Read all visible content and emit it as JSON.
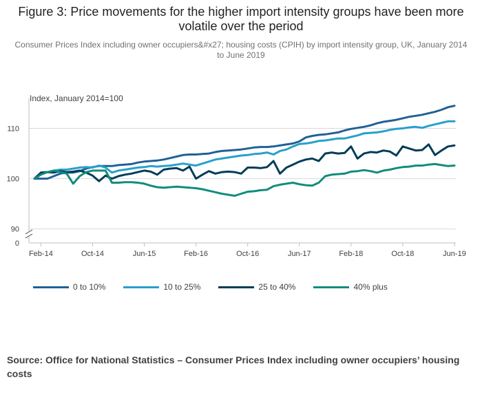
{
  "title": "Figure 3: Price movements for the higher import intensity groups have been more volatile over the period",
  "subtitle": "Consumer Prices Index including owner occupiers&#x27; housing costs (CPIH) by import intensity group, UK, January 2014 to June 2019",
  "source": "Source: Office for National Statistics – Consumer Prices Index including owner occupiers’ housing costs",
  "chart_data": {
    "type": "line",
    "ylabel": "Index, January 2014=100",
    "yticks": [
      90,
      100,
      110
    ],
    "ybreak_tick": 0,
    "ylim": [
      89,
      115
    ],
    "x_count": 66,
    "xtick_labels": [
      "Feb-14",
      "Oct-14",
      "Jun-15",
      "Feb-16",
      "Oct-16",
      "Jun-17",
      "Feb-18",
      "Oct-18",
      "Jun-19"
    ],
    "xtick_indices": [
      1,
      9,
      17,
      25,
      33,
      41,
      49,
      57,
      65
    ],
    "series": [
      {
        "name": "0 to 10%",
        "color": "#206095",
        "values": [
          100.0,
          100.0,
          100.0,
          100.5,
          101.0,
          101.2,
          101.2,
          101.5,
          102.0,
          102.3,
          102.5,
          102.5,
          102.5,
          102.7,
          102.8,
          102.9,
          103.2,
          103.4,
          103.5,
          103.6,
          103.8,
          104.1,
          104.4,
          104.7,
          104.8,
          104.8,
          104.9,
          105.0,
          105.3,
          105.5,
          105.6,
          105.7,
          105.8,
          106.0,
          106.2,
          106.3,
          106.3,
          106.4,
          106.6,
          106.8,
          107.0,
          107.4,
          108.2,
          108.5,
          108.7,
          108.8,
          109.0,
          109.2,
          109.6,
          109.9,
          110.1,
          110.3,
          110.6,
          111.0,
          111.3,
          111.5,
          111.7,
          112.0,
          112.3,
          112.5,
          112.7,
          113.0,
          113.3,
          113.7,
          114.2,
          114.5
        ]
      },
      {
        "name": "10 to 25%",
        "color": "#27a0cc",
        "values": [
          100.0,
          101.0,
          101.3,
          101.6,
          101.8,
          101.8,
          102.0,
          102.2,
          102.3,
          102.2,
          102.6,
          102.2,
          101.2,
          101.6,
          101.8,
          102.0,
          102.2,
          102.3,
          102.5,
          102.4,
          102.5,
          102.6,
          102.8,
          103.0,
          102.8,
          102.6,
          103.0,
          103.4,
          103.8,
          104.0,
          104.2,
          104.4,
          104.6,
          104.7,
          104.9,
          105.0,
          105.2,
          104.8,
          105.5,
          105.8,
          106.4,
          106.9,
          107.0,
          107.2,
          107.5,
          107.6,
          107.8,
          108.0,
          108.0,
          108.3,
          108.6,
          109.0,
          109.1,
          109.2,
          109.4,
          109.7,
          109.9,
          110.0,
          110.2,
          110.3,
          110.1,
          110.5,
          110.8,
          111.1,
          111.4,
          111.4
        ]
      },
      {
        "name": "25 to 40%",
        "color": "#003c57",
        "values": [
          100.0,
          101.2,
          101.3,
          101.2,
          101.5,
          101.3,
          101.4,
          101.6,
          101.2,
          100.6,
          99.5,
          100.6,
          100.0,
          100.5,
          100.8,
          101.0,
          101.3,
          101.6,
          101.4,
          100.8,
          101.8,
          102.0,
          102.1,
          101.6,
          102.4,
          100.0,
          100.8,
          101.5,
          101.0,
          101.3,
          101.4,
          101.3,
          101.0,
          102.2,
          102.2,
          102.1,
          102.3,
          103.5,
          101.0,
          102.2,
          102.8,
          103.4,
          103.8,
          104.0,
          103.5,
          105.0,
          105.2,
          105.0,
          105.1,
          106.4,
          104.0,
          105.0,
          105.3,
          105.2,
          105.6,
          105.4,
          104.6,
          106.4,
          106.0,
          105.6,
          105.7,
          106.8,
          104.7,
          105.6,
          106.4,
          106.6
        ]
      },
      {
        "name": "40% plus",
        "color": "#118c7b",
        "values": [
          100.0,
          100.8,
          101.3,
          101.6,
          101.3,
          101.0,
          99.0,
          100.5,
          101.3,
          101.6,
          101.6,
          101.6,
          99.2,
          99.2,
          99.3,
          99.3,
          99.2,
          99.0,
          98.6,
          98.3,
          98.2,
          98.3,
          98.4,
          98.3,
          98.2,
          98.1,
          97.9,
          97.6,
          97.3,
          97.0,
          96.8,
          96.6,
          97.0,
          97.4,
          97.5,
          97.7,
          97.8,
          98.5,
          98.8,
          99.0,
          99.2,
          98.9,
          98.7,
          98.6,
          99.2,
          100.5,
          100.8,
          100.9,
          101.0,
          101.4,
          101.5,
          101.7,
          101.5,
          101.2,
          101.6,
          101.8,
          102.1,
          102.3,
          102.4,
          102.6,
          102.6,
          102.8,
          102.9,
          102.7,
          102.5,
          102.6
        ]
      }
    ]
  }
}
